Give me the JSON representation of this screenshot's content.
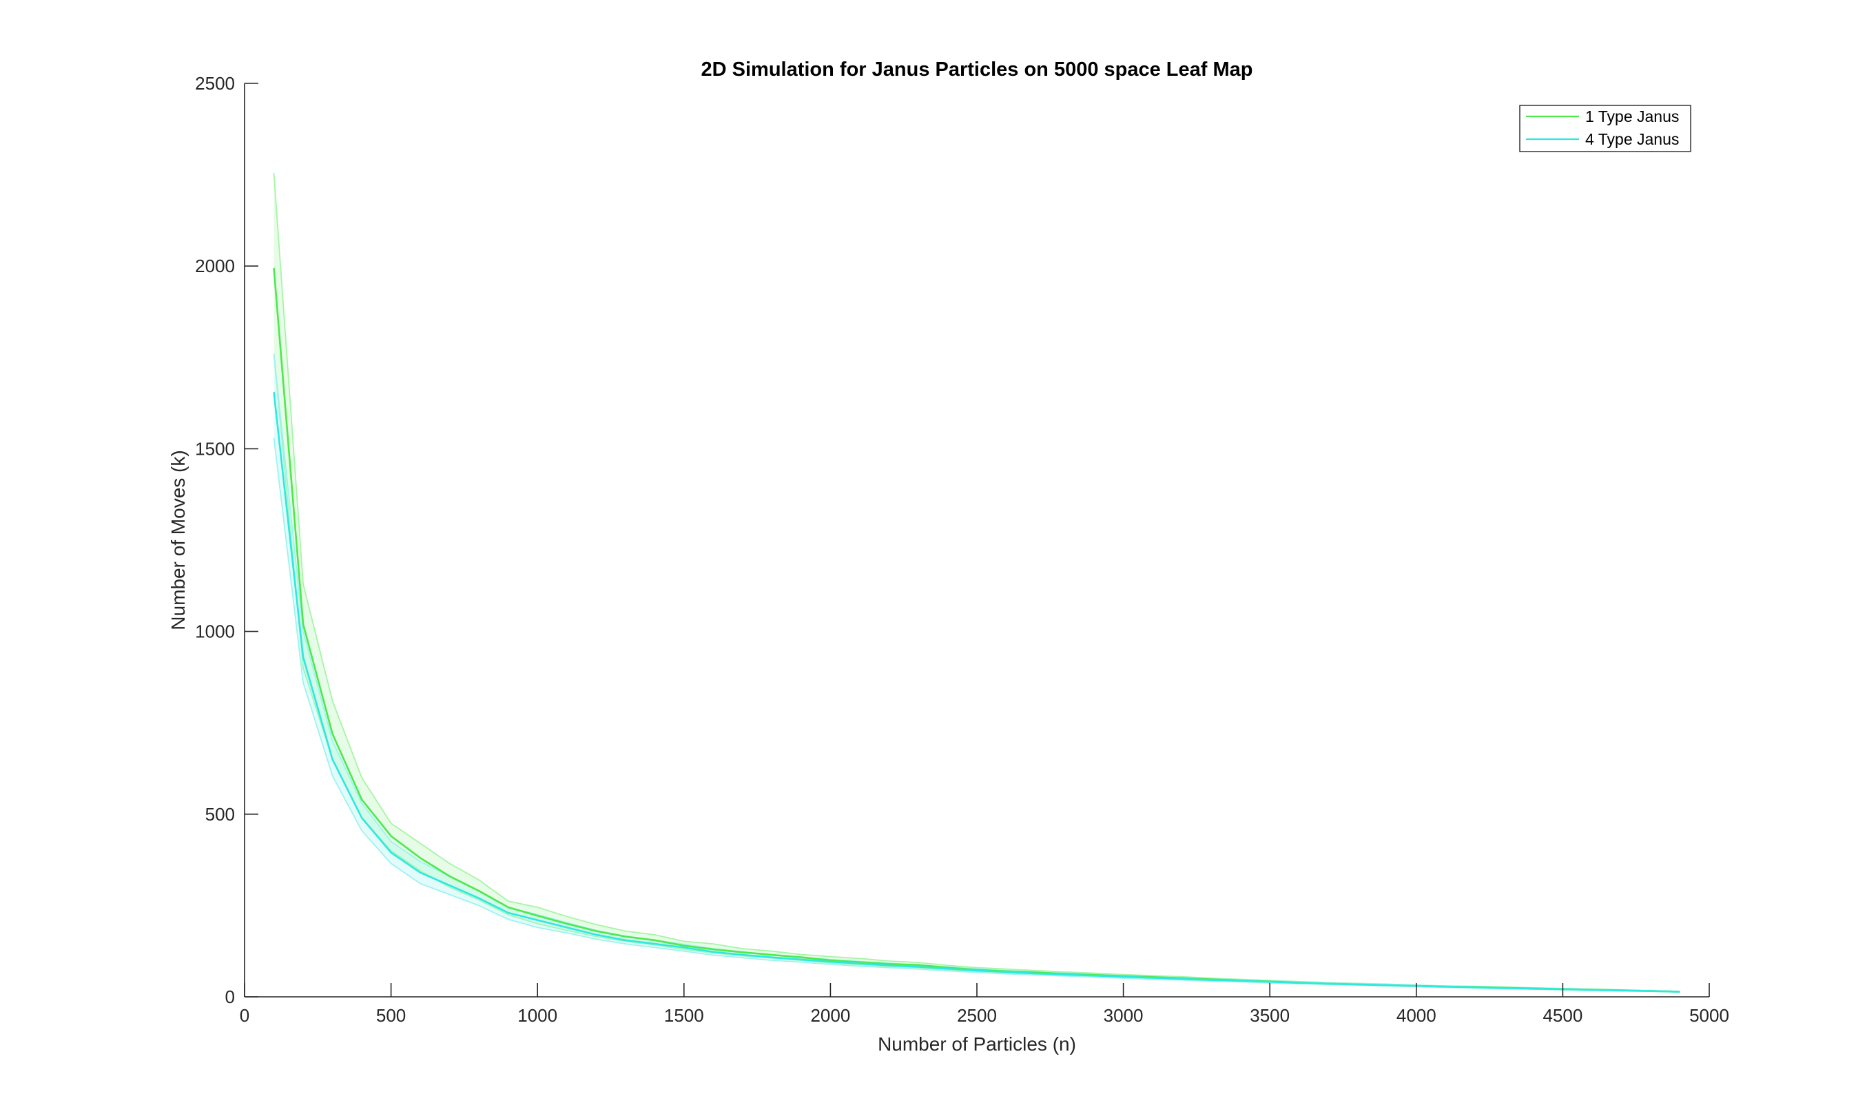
{
  "chart_data": {
    "type": "line",
    "title": "2D Simulation for Janus Particles on 5000 space Leaf Map",
    "xlabel": "Number of Particles (n)",
    "ylabel": "Number of Moves (k)",
    "xlim": [
      0,
      5000
    ],
    "ylim": [
      0,
      2500
    ],
    "xticks": [
      0,
      500,
      1000,
      1500,
      2000,
      2500,
      3000,
      3500,
      4000,
      4500,
      5000
    ],
    "yticks": [
      0,
      500,
      1000,
      1500,
      2000,
      2500
    ],
    "grid": false,
    "legend_position": "top-right",
    "x": [
      100,
      200,
      300,
      400,
      500,
      600,
      700,
      800,
      900,
      1000,
      1100,
      1200,
      1300,
      1400,
      1500,
      1600,
      1700,
      1800,
      1900,
      2000,
      2100,
      2200,
      2300,
      2400,
      2500,
      2600,
      2700,
      2800,
      2900,
      3000,
      3100,
      3200,
      3300,
      3400,
      3500,
      3600,
      3700,
      3800,
      3900,
      4000,
      4100,
      4200,
      4300,
      4400,
      4500,
      4600,
      4700,
      4800,
      4900
    ],
    "series": [
      {
        "name": "1 Type Janus",
        "color": "#4ee84e",
        "band_color": "#a6f5a6",
        "values": [
          1995,
          1020,
          720,
          540,
          440,
          380,
          330,
          290,
          245,
          222,
          200,
          180,
          165,
          155,
          140,
          130,
          122,
          115,
          108,
          100,
          95,
          90,
          87,
          80,
          74,
          70,
          67,
          63,
          60,
          57,
          54,
          51,
          48,
          45,
          42,
          39,
          36,
          34,
          32,
          30,
          28,
          27,
          25,
          23,
          21,
          20,
          18,
          16,
          14
        ],
        "upper": [
          2255,
          1130,
          810,
          600,
          475,
          420,
          365,
          320,
          262,
          245,
          220,
          198,
          180,
          170,
          152,
          145,
          132,
          125,
          116,
          110,
          105,
          98,
          94,
          86,
          80,
          76,
          72,
          68,
          65,
          61,
          58,
          55,
          51,
          48,
          45,
          42,
          39,
          37,
          35,
          32,
          30,
          29,
          27,
          25,
          23,
          21,
          19,
          17,
          15
        ],
        "lower": [
          1760,
          900,
          650,
          490,
          400,
          345,
          300,
          265,
          225,
          200,
          182,
          165,
          152,
          142,
          130,
          120,
          112,
          106,
          100,
          93,
          88,
          83,
          80,
          74,
          69,
          65,
          62,
          58,
          56,
          53,
          50,
          47,
          45,
          42,
          39,
          37,
          34,
          32,
          30,
          28,
          26,
          25,
          23,
          21,
          19,
          18,
          16,
          15,
          13
        ]
      },
      {
        "name": "4 Type Janus",
        "color": "#2ee8e0",
        "band_color": "#9cf3f0",
        "values": [
          1655,
          930,
          650,
          490,
          395,
          340,
          305,
          270,
          230,
          210,
          190,
          170,
          155,
          145,
          135,
          123,
          115,
          108,
          102,
          96,
          91,
          86,
          82,
          77,
          72,
          68,
          64,
          61,
          58,
          55,
          52,
          49,
          46,
          44,
          41,
          38,
          36,
          34,
          32,
          30,
          28,
          26,
          24,
          22,
          21,
          19,
          17,
          16,
          14
        ],
        "upper": [
          1760,
          1000,
          700,
          530,
          425,
          370,
          330,
          290,
          245,
          225,
          203,
          182,
          166,
          155,
          144,
          132,
          123,
          115,
          109,
          102,
          97,
          92,
          87,
          82,
          77,
          72,
          68,
          65,
          62,
          58,
          55,
          52,
          49,
          47,
          44,
          41,
          38,
          36,
          34,
          32,
          30,
          28,
          26,
          24,
          22,
          20,
          18,
          17,
          15
        ],
        "lower": [
          1530,
          860,
          605,
          455,
          365,
          310,
          280,
          250,
          212,
          190,
          175,
          158,
          145,
          135,
          125,
          114,
          107,
          100,
          95,
          89,
          84,
          80,
          76,
          71,
          67,
          63,
          60,
          57,
          54,
          51,
          48,
          46,
          43,
          41,
          38,
          36,
          34,
          32,
          30,
          28,
          26,
          24,
          22,
          21,
          19,
          18,
          16,
          15,
          13
        ]
      }
    ]
  }
}
